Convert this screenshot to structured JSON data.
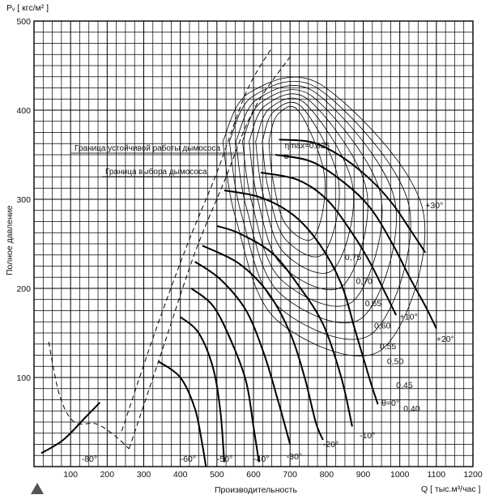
{
  "chart_data": {
    "type": "line",
    "title": "",
    "xlabel": "Производительность",
    "xunit": "Q [ тыс.м³/час ]",
    "ylabel": "Полное давление",
    "yunit": "Pᵥ [ кгс/м² ]",
    "xlim": [
      0,
      1200
    ],
    "ylim": [
      0,
      500
    ],
    "xticks": [
      100,
      200,
      300,
      400,
      500,
      600,
      700,
      800,
      900,
      1000,
      1100,
      1200
    ],
    "yticks": [
      100,
      200,
      300,
      400,
      500
    ],
    "grid": true,
    "legend": "none",
    "boundary_labels": {
      "stable": "Граница устойчивой работы дымососа",
      "selection": "Граница выбора дымососа"
    },
    "eta_max": {
      "label": "ηmax=0,825",
      "x": 690,
      "y": 348
    },
    "theta_curves": [
      {
        "name": "+30°",
        "label_at": [
          1070,
          290
        ],
        "points": [
          [
            670,
            367
          ],
          [
            760,
            364
          ],
          [
            840,
            348
          ],
          [
            920,
            322
          ],
          [
            980,
            295
          ],
          [
            1030,
            265
          ],
          [
            1070,
            240
          ]
        ]
      },
      {
        "name": "+20°",
        "label_at": [
          1100,
          140
        ],
        "points": [
          [
            660,
            350
          ],
          [
            760,
            342
          ],
          [
            850,
            318
          ],
          [
            920,
            290
          ],
          [
            980,
            250
          ],
          [
            1030,
            210
          ],
          [
            1070,
            180
          ],
          [
            1100,
            155
          ]
        ]
      },
      {
        "name": "+10°",
        "label_at": [
          1000,
          165
        ],
        "points": [
          [
            620,
            330
          ],
          [
            720,
            322
          ],
          [
            800,
            300
          ],
          [
            870,
            262
          ],
          [
            920,
            228
          ],
          [
            960,
            195
          ],
          [
            990,
            170
          ]
        ]
      },
      {
        "name": "θ=0°",
        "label_at": [
          950,
          68
        ],
        "points": [
          [
            520,
            310
          ],
          [
            620,
            302
          ],
          [
            710,
            282
          ],
          [
            780,
            250
          ],
          [
            840,
            205
          ],
          [
            880,
            150
          ],
          [
            920,
            95
          ],
          [
            940,
            70
          ]
        ]
      },
      {
        "name": "-10°",
        "label_at": [
          890,
          32
        ],
        "points": [
          [
            500,
            270
          ],
          [
            560,
            262
          ],
          [
            650,
            240
          ],
          [
            720,
            205
          ],
          [
            790,
            160
          ],
          [
            840,
            100
          ],
          [
            870,
            45
          ]
        ]
      },
      {
        "name": "-20°",
        "label_at": [
          790,
          22
        ],
        "points": [
          [
            460,
            248
          ],
          [
            560,
            228
          ],
          [
            640,
            195
          ],
          [
            700,
            150
          ],
          [
            740,
            100
          ],
          [
            770,
            50
          ],
          [
            790,
            30
          ]
        ]
      },
      {
        "name": "-30°",
        "label_at": [
          690,
          8
        ],
        "points": [
          [
            440,
            230
          ],
          [
            510,
            210
          ],
          [
            580,
            175
          ],
          [
            630,
            125
          ],
          [
            670,
            70
          ],
          [
            700,
            25
          ]
        ]
      },
      {
        "name": "-40°",
        "label_at": [
          600,
          -10
        ],
        "points": [
          [
            430,
            200
          ],
          [
            490,
            180
          ],
          [
            540,
            140
          ],
          [
            580,
            95
          ],
          [
            600,
            45
          ],
          [
            615,
            5
          ]
        ]
      },
      {
        "name": "-50°",
        "label_at": [
          500,
          -12
        ],
        "points": [
          [
            400,
            168
          ],
          [
            450,
            150
          ],
          [
            490,
            110
          ],
          [
            510,
            60
          ],
          [
            520,
            5
          ]
        ]
      },
      {
        "name": "-60°",
        "label_at": [
          400,
          -15
        ],
        "points": [
          [
            340,
            118
          ],
          [
            400,
            100
          ],
          [
            440,
            65
          ],
          [
            460,
            25
          ],
          [
            470,
            0
          ]
        ]
      },
      {
        "name": "-80°",
        "label_at": [
          130,
          5
        ],
        "points": [
          [
            20,
            15
          ],
          [
            80,
            30
          ],
          [
            140,
            55
          ],
          [
            180,
            72
          ]
        ]
      }
    ],
    "efficiency_contours": [
      {
        "name": "0,75",
        "label_at": [
          850,
          232
        ]
      },
      {
        "name": "0,70",
        "label_at": [
          880,
          205
        ]
      },
      {
        "name": "0,65",
        "label_at": [
          905,
          180
        ]
      },
      {
        "name": "0,60",
        "label_at": [
          930,
          155
        ]
      },
      {
        "name": "0,55",
        "label_at": [
          945,
          132
        ]
      },
      {
        "name": "0,50",
        "label_at": [
          965,
          115
        ]
      },
      {
        "name": "0,45",
        "label_at": [
          990,
          88
        ]
      },
      {
        "name": "0,40",
        "label_at": [
          1010,
          62
        ]
      }
    ]
  }
}
